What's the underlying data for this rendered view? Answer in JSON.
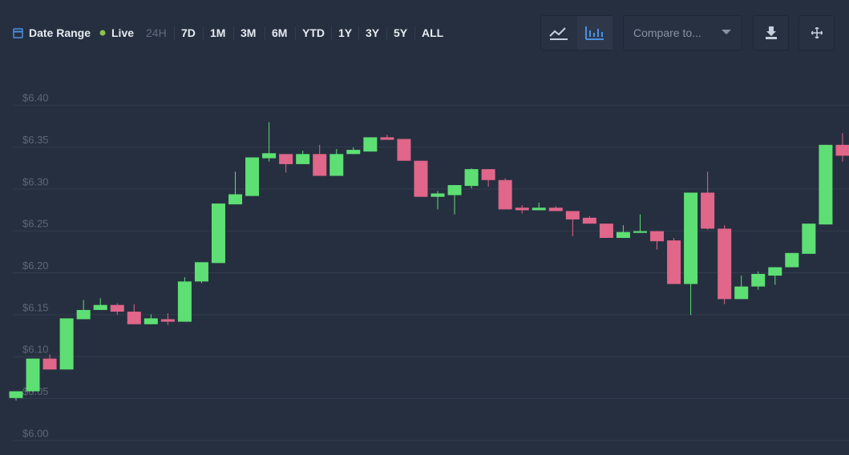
{
  "toolbar": {
    "date_range": "Date Range",
    "live": "Live",
    "ranges": [
      "24H",
      "7D",
      "1M",
      "3M",
      "6M",
      "YTD",
      "1Y",
      "3Y",
      "5Y",
      "ALL"
    ],
    "compare": "Compare to..."
  },
  "chart_data": {
    "type": "candlestick",
    "up_color": "#5ddf74",
    "down_color": "#e0668a",
    "grid": true,
    "ylim": [
      5.975,
      6.427
    ],
    "yticks": [
      {
        "value": 6.0,
        "label": "$6.00"
      },
      {
        "value": 6.05,
        "label": "$6.05"
      },
      {
        "value": 6.1,
        "label": "$6.10"
      },
      {
        "value": 6.15,
        "label": "$6.15"
      },
      {
        "value": 6.2,
        "label": "$6.20"
      },
      {
        "value": 6.25,
        "label": "$6.25"
      },
      {
        "value": 6.3,
        "label": "$6.30"
      },
      {
        "value": 6.35,
        "label": "$6.35"
      },
      {
        "value": 6.4,
        "label": "$6.40"
      }
    ],
    "open": [
      6.043,
      6.051,
      6.09,
      6.077,
      6.137,
      6.148,
      6.154,
      6.146,
      6.131,
      6.137,
      6.134,
      6.182,
      6.204,
      6.274,
      6.284,
      6.329,
      6.334,
      6.322,
      6.334,
      6.308,
      6.334,
      6.337,
      6.354,
      6.352,
      6.326,
      6.283,
      6.285,
      6.296,
      6.316,
      6.303,
      6.27,
      6.267,
      6.27,
      6.266,
      6.258,
      6.251,
      6.234,
      6.24,
      6.242,
      6.231,
      6.179,
      6.288,
      6.245,
      6.161,
      6.176,
      6.189,
      6.199,
      6.215,
      6.25,
      6.345
    ],
    "high": [
      6.051,
      6.09,
      6.095,
      6.138,
      6.16,
      6.162,
      6.156,
      6.155,
      6.143,
      6.144,
      6.187,
      6.205,
      6.275,
      6.313,
      6.33,
      6.372,
      6.334,
      6.338,
      6.345,
      6.34,
      6.342,
      6.354,
      6.357,
      6.352,
      6.326,
      6.29,
      6.297,
      6.317,
      6.316,
      6.305,
      6.273,
      6.276,
      6.272,
      6.266,
      6.26,
      6.251,
      6.249,
      6.262,
      6.242,
      6.234,
      6.288,
      6.313,
      6.249,
      6.189,
      6.194,
      6.199,
      6.216,
      6.251,
      6.345,
      6.359
    ],
    "low": [
      6.04,
      6.05,
      6.077,
      6.077,
      6.137,
      6.148,
      6.142,
      6.131,
      6.131,
      6.13,
      6.134,
      6.18,
      6.204,
      6.274,
      6.284,
      6.325,
      6.312,
      6.322,
      6.308,
      6.308,
      6.334,
      6.337,
      6.351,
      6.326,
      6.283,
      6.268,
      6.262,
      6.293,
      6.295,
      6.268,
      6.263,
      6.267,
      6.266,
      6.236,
      6.251,
      6.234,
      6.234,
      6.24,
      6.22,
      6.179,
      6.142,
      6.244,
      6.155,
      6.161,
      6.172,
      6.178,
      6.199,
      6.215,
      6.25,
      6.325
    ],
    "close": [
      6.051,
      6.09,
      6.077,
      6.138,
      6.148,
      6.154,
      6.146,
      6.131,
      6.138,
      6.134,
      6.182,
      6.205,
      6.275,
      6.286,
      6.33,
      6.335,
      6.322,
      6.334,
      6.308,
      6.334,
      6.339,
      6.354,
      6.351,
      6.326,
      6.283,
      6.287,
      6.297,
      6.316,
      6.303,
      6.268,
      6.267,
      6.27,
      6.266,
      6.256,
      6.251,
      6.234,
      6.241,
      6.242,
      6.23,
      6.179,
      6.288,
      6.245,
      6.161,
      6.176,
      6.191,
      6.199,
      6.216,
      6.251,
      6.345,
      6.332
    ]
  }
}
